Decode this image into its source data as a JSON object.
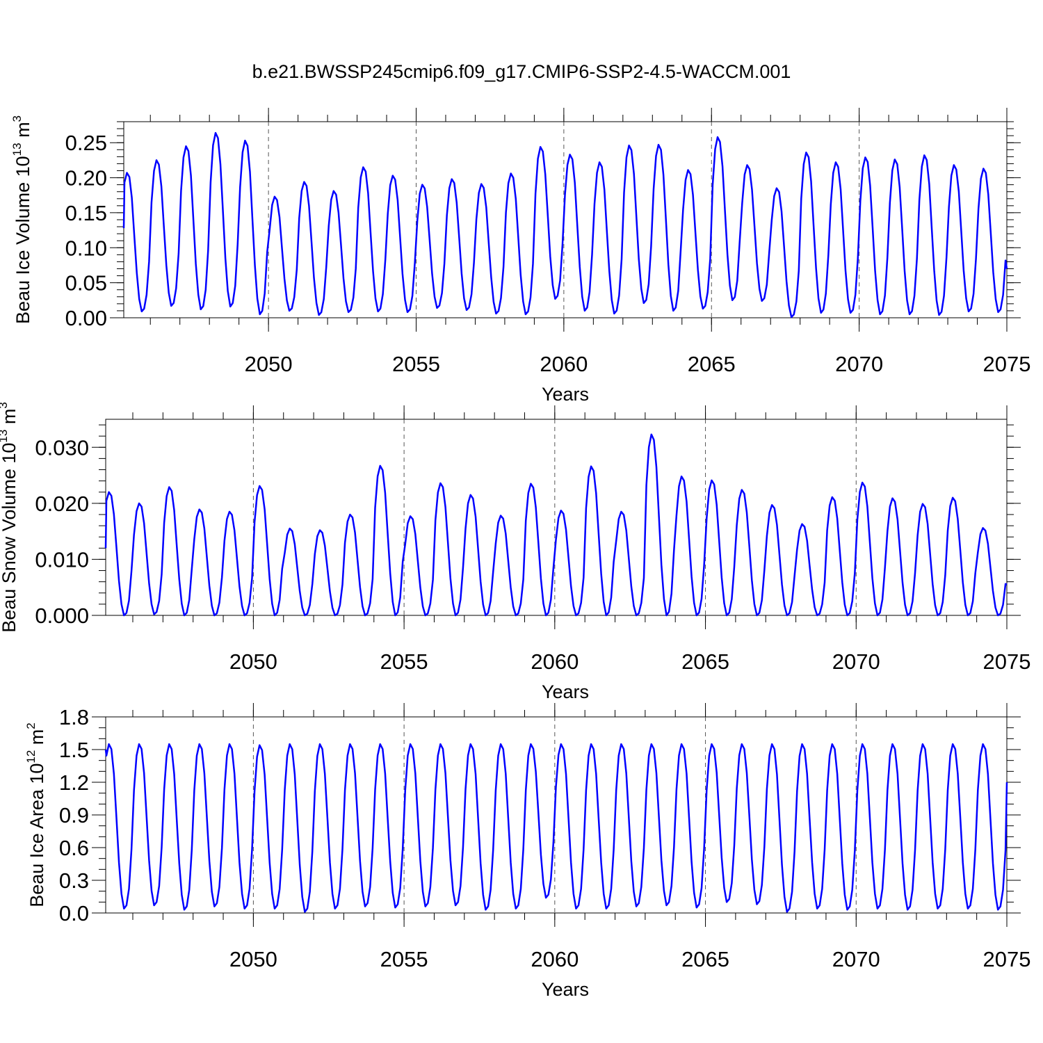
{
  "title": "b.e21.BWSSP245cmip6.f09_g17.CMIP6-SSP2-4.5-WACCM.001",
  "chart_data": [
    {
      "type": "line",
      "ylabel": "Beau Ice Volume 10",
      "ylabel_exp": "13",
      "ylabel_unit": " m",
      "ylabel_unit_exp": "3",
      "xlabel": "Years",
      "xlim": [
        2045.1,
        2075.0
      ],
      "ylim": [
        0.0,
        0.28
      ],
      "x_ticks": [
        2050,
        2055,
        2060,
        2065,
        2070,
        2075
      ],
      "x_tick_labels": [
        "2050",
        "2055",
        "2060",
        "2065",
        "2070",
        "2075"
      ],
      "y_ticks": [
        0.0,
        0.05,
        0.1,
        0.15,
        0.2,
        0.25
      ],
      "y_tick_labels": [
        "0.00",
        "0.05",
        "0.10",
        "0.15",
        "0.20",
        "0.25"
      ],
      "y_minor_step": 0.01,
      "ref_lines_x": [
        2050,
        2055,
        2060,
        2065,
        2070
      ],
      "color": "#0000ff",
      "series_start": 2045.04,
      "series_step": 0.08333,
      "cycle": {
        "maxima": [
          0.207,
          0.225,
          0.245,
          0.264,
          0.253,
          0.173,
          0.194,
          0.181,
          0.215,
          0.203,
          0.19,
          0.198,
          0.191,
          0.206,
          0.244,
          0.233,
          0.222,
          0.246,
          0.247,
          0.211,
          0.258,
          0.218,
          0.185,
          0.236,
          0.222,
          0.229,
          0.226,
          0.232,
          0.218,
          0.213
        ],
        "minima": [
          0.009,
          0.017,
          0.012,
          0.016,
          0.005,
          0.01,
          0.004,
          0.008,
          0.009,
          0.008,
          0.014,
          0.011,
          0.006,
          0.005,
          0.027,
          0.01,
          0.006,
          0.021,
          0.01,
          0.013,
          0.025,
          0.024,
          0.001,
          0.007,
          0.007,
          0.005,
          0.005,
          0.004,
          0.009,
          0.008
        ],
        "start_value": 0.128,
        "end_value": 0.07
      }
    },
    {
      "type": "line",
      "ylabel": "Beau Snow Volume 10",
      "ylabel_exp": "13",
      "ylabel_unit": " m",
      "ylabel_unit_exp": "3",
      "xlabel": "Years",
      "xlim": [
        2045.1,
        2075.0
      ],
      "ylim": [
        0.0,
        0.035
      ],
      "x_ticks": [
        2050,
        2055,
        2060,
        2065,
        2070,
        2075
      ],
      "x_tick_labels": [
        "2050",
        "2055",
        "2060",
        "2065",
        "2070",
        "2075"
      ],
      "y_ticks": [
        0.0,
        0.01,
        0.02,
        0.03
      ],
      "y_tick_labels": [
        "0.000",
        "0.010",
        "0.020",
        "0.030"
      ],
      "y_minor_step": 0.002,
      "ref_lines_x": [
        2050,
        2055,
        2060,
        2065,
        2070
      ],
      "color": "#0000ff",
      "series_start": 2045.04,
      "series_step": 0.08333,
      "cycle": {
        "maxima": [
          0.022,
          0.02,
          0.0229,
          0.0189,
          0.0185,
          0.0231,
          0.0155,
          0.0152,
          0.018,
          0.0267,
          0.0177,
          0.0236,
          0.0215,
          0.0178,
          0.0235,
          0.0187,
          0.0266,
          0.0185,
          0.0323,
          0.0248,
          0.0241,
          0.0224,
          0.0197,
          0.0163,
          0.0211,
          0.0237,
          0.0209,
          0.0199,
          0.021,
          0.0156
        ],
        "minima": [
          0.0,
          0.0002,
          0.0,
          0.0,
          0.0,
          0.0,
          0.0,
          0.0,
          0.0,
          0.0,
          0.0,
          0.0,
          0.0,
          0.0,
          0.0,
          0.0,
          0.0,
          0.0,
          0.0,
          0.0,
          0.0,
          0.0,
          0.0,
          0.0,
          0.0,
          0.0,
          0.0,
          0.0,
          0.0,
          0.0
        ],
        "start_value": 0.012,
        "end_value": 0.0055
      }
    },
    {
      "type": "line",
      "ylabel": "Beau Ice Area 10",
      "ylabel_exp": "12",
      "ylabel_unit": " m",
      "ylabel_unit_exp": "2",
      "xlabel": "Years",
      "xlim": [
        2045.1,
        2075.0
      ],
      "ylim": [
        0.0,
        1.8
      ],
      "x_ticks": [
        2050,
        2055,
        2060,
        2065,
        2070,
        2075
      ],
      "x_tick_labels": [
        "2050",
        "2055",
        "2060",
        "2065",
        "2070",
        "2075"
      ],
      "y_ticks": [
        0.0,
        0.3,
        0.6,
        0.9,
        1.2,
        1.5,
        1.8
      ],
      "y_tick_labels": [
        "0.0",
        "0.3",
        "0.6",
        "0.9",
        "1.2",
        "1.5",
        "1.8"
      ],
      "y_minor_step": 0.1,
      "ref_lines_x": [
        2050,
        2055,
        2060,
        2065,
        2070
      ],
      "color": "#0000ff",
      "series_start": 2045.04,
      "series_step": 0.08333,
      "cycle": {
        "maxima": [
          1.55,
          1.55,
          1.55,
          1.55,
          1.55,
          1.54,
          1.55,
          1.55,
          1.55,
          1.55,
          1.55,
          1.55,
          1.55,
          1.55,
          1.55,
          1.55,
          1.55,
          1.55,
          1.55,
          1.55,
          1.55,
          1.55,
          1.55,
          1.55,
          1.55,
          1.55,
          1.55,
          1.55,
          1.55,
          1.55
        ],
        "minima": [
          0.04,
          0.07,
          0.03,
          0.06,
          0.04,
          0.04,
          0.01,
          0.04,
          0.06,
          0.05,
          0.06,
          0.07,
          0.03,
          0.04,
          0.14,
          0.04,
          0.04,
          0.06,
          0.07,
          0.05,
          0.1,
          0.08,
          0.01,
          0.04,
          0.03,
          0.04,
          0.03,
          0.04,
          0.04,
          0.03
        ],
        "start_value": 1.5,
        "end_value": 1.2
      }
    }
  ]
}
